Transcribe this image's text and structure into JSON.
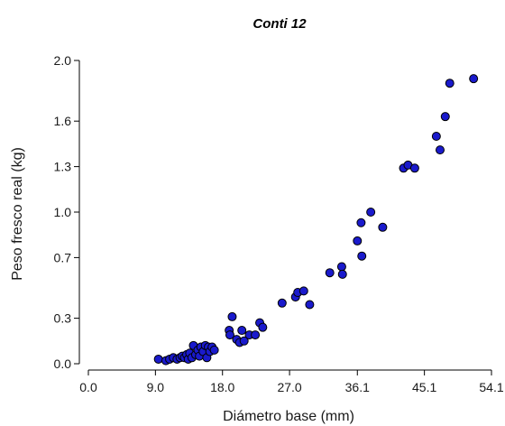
{
  "chart_data": {
    "type": "scatter",
    "title": "Conti 12",
    "xlabel": "Diámetro base (mm)",
    "ylabel": "Peso fresco real (kg)",
    "xlim": [
      0.0,
      54.1
    ],
    "ylim": [
      0.0,
      2.0
    ],
    "xticks": [
      0.0,
      9.0,
      18.0,
      27.0,
      36.1,
      45.1,
      54.1
    ],
    "xtick_labels": [
      "0.0",
      "9.0",
      "18.0",
      "27.0",
      "36.1",
      "45.1",
      "54.1"
    ],
    "yticks": [
      0.0,
      0.3,
      0.7,
      1.0,
      1.3,
      1.6,
      2.0
    ],
    "ytick_labels": [
      "0.0",
      "0.3",
      "0.7",
      "1.0",
      "1.3",
      "1.6",
      "2.0"
    ],
    "grid": false,
    "legend": false,
    "marker_color": "#1a1acc",
    "marker_edge": "#000000",
    "points": [
      {
        "x": 9.4,
        "y": 0.03
      },
      {
        "x": 10.4,
        "y": 0.02
      },
      {
        "x": 10.9,
        "y": 0.03
      },
      {
        "x": 11.4,
        "y": 0.04
      },
      {
        "x": 11.9,
        "y": 0.03
      },
      {
        "x": 12.3,
        "y": 0.04
      },
      {
        "x": 12.6,
        "y": 0.05
      },
      {
        "x": 12.9,
        "y": 0.04
      },
      {
        "x": 13.2,
        "y": 0.06
      },
      {
        "x": 13.4,
        "y": 0.03
      },
      {
        "x": 13.6,
        "y": 0.07
      },
      {
        "x": 13.9,
        "y": 0.04
      },
      {
        "x": 14.1,
        "y": 0.12
      },
      {
        "x": 14.4,
        "y": 0.06
      },
      {
        "x": 14.7,
        "y": 0.09
      },
      {
        "x": 14.9,
        "y": 0.05
      },
      {
        "x": 15.1,
        "y": 0.11
      },
      {
        "x": 15.4,
        "y": 0.08
      },
      {
        "x": 15.7,
        "y": 0.12
      },
      {
        "x": 15.9,
        "y": 0.04
      },
      {
        "x": 16.1,
        "y": 0.11
      },
      {
        "x": 16.3,
        "y": 0.08
      },
      {
        "x": 16.6,
        "y": 0.11
      },
      {
        "x": 16.9,
        "y": 0.09
      },
      {
        "x": 18.9,
        "y": 0.22
      },
      {
        "x": 19.0,
        "y": 0.19
      },
      {
        "x": 19.3,
        "y": 0.31
      },
      {
        "x": 19.9,
        "y": 0.16
      },
      {
        "x": 20.3,
        "y": 0.14
      },
      {
        "x": 20.6,
        "y": 0.22
      },
      {
        "x": 20.9,
        "y": 0.15
      },
      {
        "x": 21.6,
        "y": 0.19
      },
      {
        "x": 22.4,
        "y": 0.19
      },
      {
        "x": 23.0,
        "y": 0.27
      },
      {
        "x": 23.4,
        "y": 0.24
      },
      {
        "x": 26.0,
        "y": 0.4
      },
      {
        "x": 27.8,
        "y": 0.44
      },
      {
        "x": 28.1,
        "y": 0.47
      },
      {
        "x": 28.9,
        "y": 0.48
      },
      {
        "x": 29.7,
        "y": 0.39
      },
      {
        "x": 32.4,
        "y": 0.6
      },
      {
        "x": 34.0,
        "y": 0.64
      },
      {
        "x": 34.1,
        "y": 0.59
      },
      {
        "x": 36.1,
        "y": 0.81
      },
      {
        "x": 36.6,
        "y": 0.93
      },
      {
        "x": 36.7,
        "y": 0.71
      },
      {
        "x": 37.9,
        "y": 1.0
      },
      {
        "x": 39.5,
        "y": 0.9
      },
      {
        "x": 42.3,
        "y": 1.29
      },
      {
        "x": 42.9,
        "y": 1.31
      },
      {
        "x": 43.8,
        "y": 1.29
      },
      {
        "x": 46.7,
        "y": 1.5
      },
      {
        "x": 47.2,
        "y": 1.41
      },
      {
        "x": 47.9,
        "y": 1.63
      },
      {
        "x": 48.5,
        "y": 1.85
      },
      {
        "x": 51.7,
        "y": 1.88
      }
    ]
  }
}
